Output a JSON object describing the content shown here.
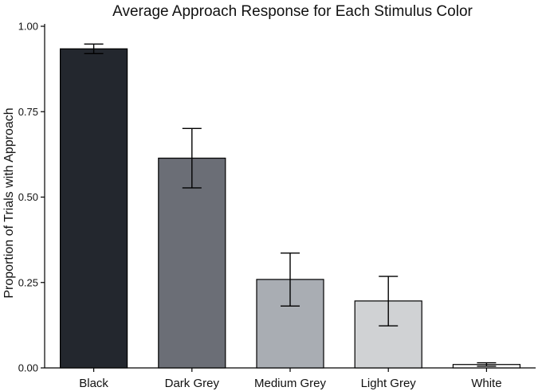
{
  "chart_data": {
    "type": "bar",
    "title": "Average Approach Response for Each Stimulus Color",
    "xlabel": "",
    "ylabel": "Proportion of Trials with Approach",
    "ylim": [
      0,
      1.0
    ],
    "yticks": [
      0.0,
      0.25,
      0.5,
      0.75,
      1.0
    ],
    "ytick_labels": [
      "0.00",
      "0.25",
      "0.50",
      "0.75",
      "1.00"
    ],
    "grid": false,
    "categories": [
      "Black",
      "Dark Grey",
      "Medium Grey",
      "Light Grey",
      "White"
    ],
    "values": [
      0.934,
      0.614,
      0.259,
      0.196,
      0.01
    ],
    "error_low": [
      0.92,
      0.527,
      0.181,
      0.123,
      0.005
    ],
    "error_high": [
      0.948,
      0.701,
      0.336,
      0.268,
      0.015
    ],
    "bar_colors": [
      "#23272e",
      "#6b6e76",
      "#a9adb3",
      "#d0d2d4",
      "#f8f8f8"
    ],
    "bar_outline_color": "#000000"
  }
}
